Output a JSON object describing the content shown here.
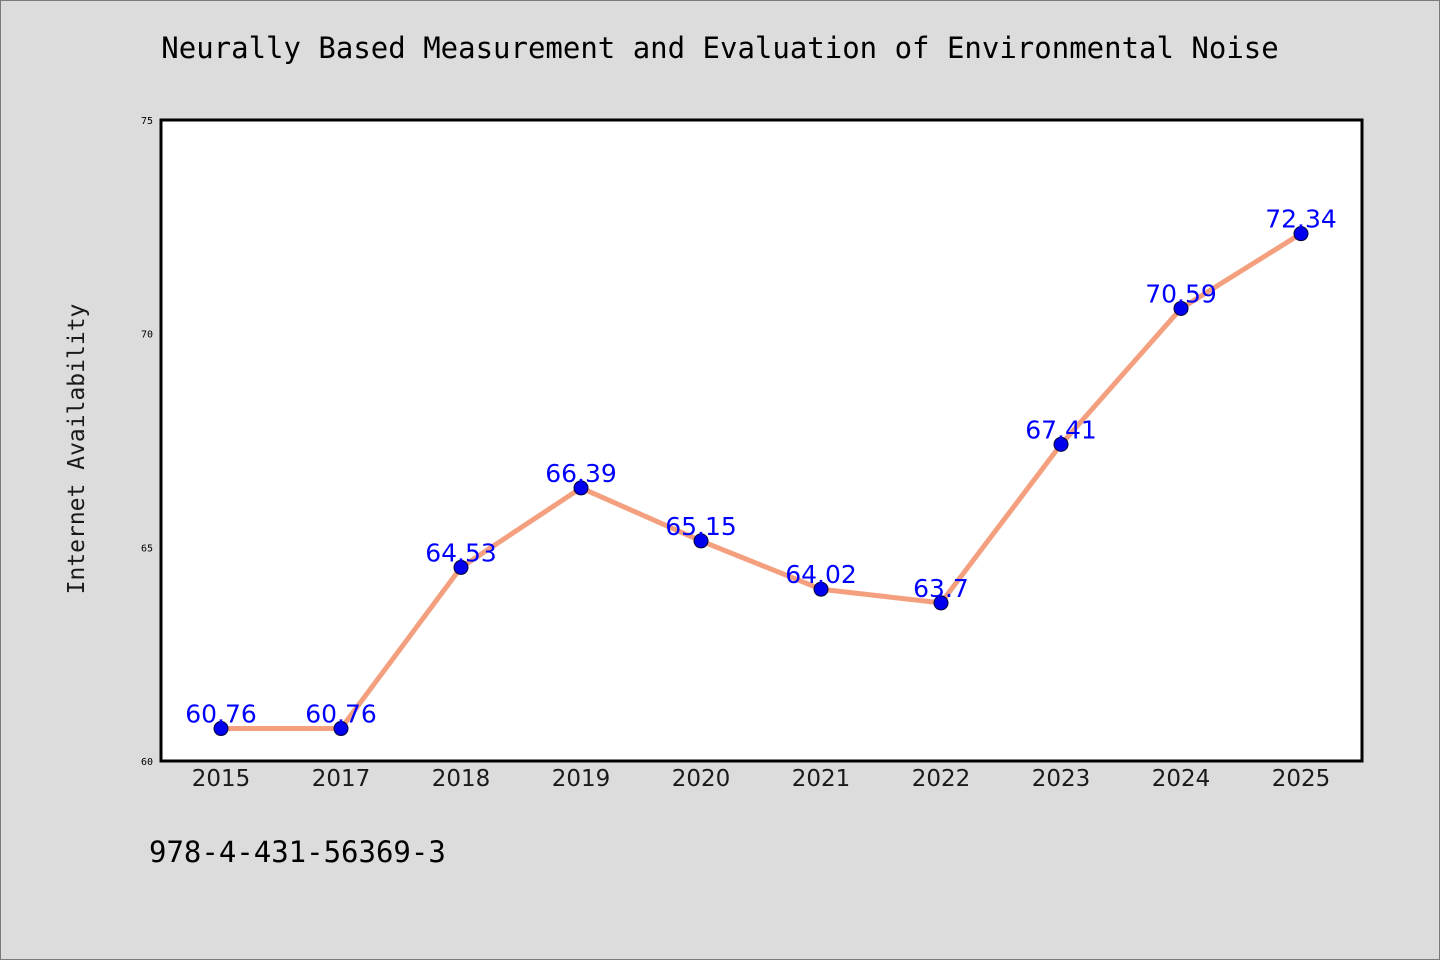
{
  "chart_data": {
    "type": "line",
    "title": "Neurally Based Measurement and Evaluation of Environmental Noise",
    "xlabel": "",
    "ylabel": "Internet Availability",
    "categories": [
      "2015",
      "2017",
      "2018",
      "2019",
      "2020",
      "2021",
      "2022",
      "2023",
      "2024",
      "2025"
    ],
    "series": [
      {
        "values": [
          60.76,
          60.76,
          64.53,
          66.39,
          65.15,
          64.02,
          63.7,
          67.41,
          70.59,
          72.34
        ],
        "labels": [
          "60.76",
          "60.76",
          "64.53",
          "66.39",
          "65.15",
          "64.02",
          "63.7",
          "67.41",
          "70.59",
          "72.34"
        ],
        "line_color": "#f4a07f",
        "marker_color": "#0000ee",
        "label_color": "#0000ff"
      }
    ],
    "ylim": [
      60,
      75
    ],
    "y_ticks": [
      "60",
      "65",
      "70",
      "75"
    ],
    "grid": false,
    "legend": "none"
  },
  "footer": {
    "code": "978-4-431-56369-3"
  },
  "colors": {
    "background": "#dcdcdc",
    "plot_background": "#ffffff",
    "line": "#f4a07f",
    "marker": "#0000ee",
    "label": "#0000ff"
  }
}
